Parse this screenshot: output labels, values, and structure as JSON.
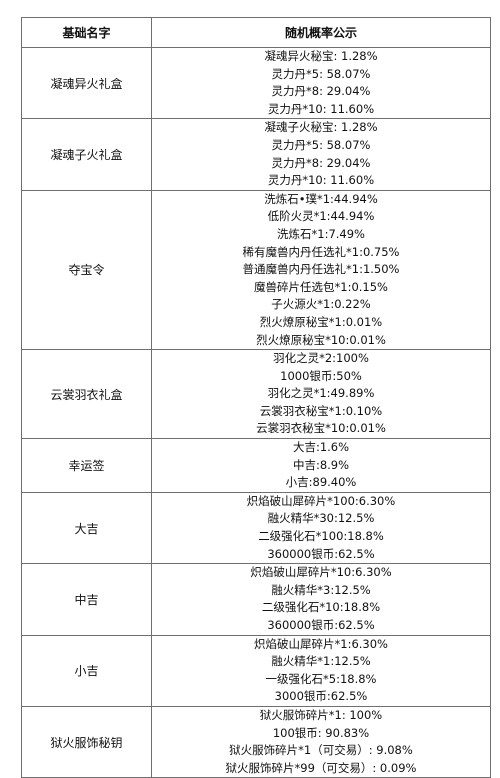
{
  "table": {
    "headers": [
      "基础名字",
      "随机概率公示"
    ],
    "rows": [
      {
        "name": "凝魂异火礼盒",
        "lines": [
          "凝魂异火秘宝: 1.28%",
          "灵力丹*5: 58.07%",
          "灵力丹*8: 29.04%",
          "灵力丹*10: 11.60%"
        ]
      },
      {
        "name": "凝魂子火礼盒",
        "lines": [
          "凝魂子火秘宝: 1.28%",
          "灵力丹*5: 58.07%",
          "灵力丹*8: 29.04%",
          "灵力丹*10: 11.60%"
        ]
      },
      {
        "name": "夺宝令",
        "lines": [
          "洗炼石•璞*1:44.94%",
          "低阶火灵*1:44.94%",
          "洗炼石*1:7.49%",
          "稀有魔兽内丹任选礼*1:0.75%",
          "普通魔兽内丹任选礼*1:1.50%",
          "魔兽碎片任选包*1:0.15%",
          "子火源火*1:0.22%",
          "烈火燎原秘宝*1:0.01%",
          "烈火燎原秘宝*10:0.01%"
        ]
      },
      {
        "name": "云裳羽衣礼盒",
        "lines": [
          "羽化之灵*2:100%",
          "1000银币:50%",
          "羽化之灵*1:49.89%",
          "云裳羽衣秘宝*1:0.10%",
          "云裳羽衣秘宝*10:0.01%"
        ]
      },
      {
        "name": "幸运签",
        "lines": [
          "大吉:1.6%",
          "中吉:8.9%",
          "小吉:89.40%"
        ]
      },
      {
        "name": "大吉",
        "lines": [
          "炽焰破山犀碎片*100:6.30%",
          "融火精华*30:12.5%",
          "二级强化石*100:18.8%",
          "360000银币:62.5%"
        ]
      },
      {
        "name": "中吉",
        "lines": [
          "炽焰破山犀碎片*10:6.30%",
          "融火精华*3:12.5%",
          "二级强化石*10:18.8%",
          "360000银币:62.5%"
        ]
      },
      {
        "name": "小吉",
        "lines": [
          "炽焰破山犀碎片*1:6.30%",
          "融火精华*1:12.5%",
          "一级强化石*5:18.8%",
          "3000银币:62.5%"
        ]
      },
      {
        "name": "狱火服饰秘钥",
        "lines": [
          "狱火服饰碎片*1: 100%",
          "100银币: 90.83%",
          "狱火服饰碎片*1（可交易）: 9.08%",
          "狱火服饰碎片*99（可交易）: 0.09%"
        ]
      }
    ]
  }
}
